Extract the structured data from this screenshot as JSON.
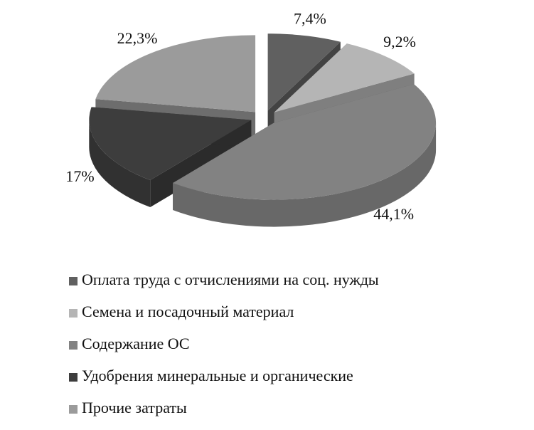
{
  "chart_data": {
    "type": "pie",
    "categories": [
      "Оплата труда с отчислениями на соц. нужды",
      "Семена и посадочный материал",
      "Содержание ОС",
      "Удобрения минеральные и органические",
      "Прочие затраты"
    ],
    "values": [
      7.4,
      9.2,
      44.1,
      17,
      22.3
    ],
    "value_labels": [
      "7,4%",
      "9,2%",
      "44,1%",
      "17%",
      "22,3%"
    ],
    "colors": [
      "#606060",
      "#b5b5b5",
      "#828282",
      "#3d3d3d",
      "#9b9b9b"
    ],
    "legend": "bottom"
  }
}
